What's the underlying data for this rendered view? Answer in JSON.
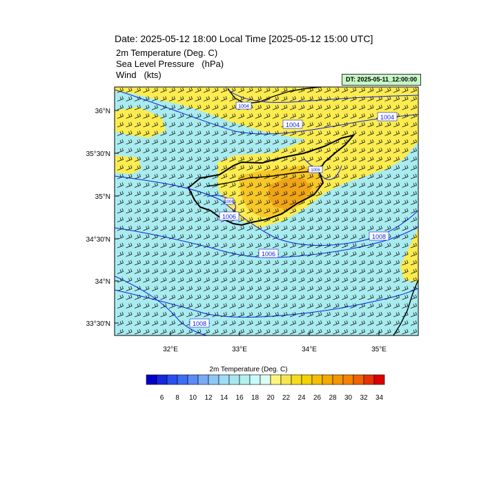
{
  "header": {
    "title": "Date: 2025-05-12  18:00 Local Time [2025-05-12  15:00 UTC]",
    "line1": "2m Temperature (Deg. C)",
    "line2": "Sea Level Pressure   (hPa)",
    "line3": "Wind   (kts)",
    "dt_label": "DT: 2025-05-11_12:00:00"
  },
  "axes": {
    "lat_ticks": [
      "36°N",
      "35°30'N",
      "35°N",
      "34°30'N",
      "34°N",
      "33°30'N"
    ],
    "lon_ticks": [
      "32°E",
      "33°E",
      "34°E",
      "35°E"
    ]
  },
  "isobar_labels": [
    "1004",
    "1004",
    "1004",
    "1006",
    "1006",
    "1006",
    "1006",
    "1008",
    "1008"
  ],
  "colorbar": {
    "title": "2m Temperature (Deg. C)",
    "tick_labels": [
      "6",
      "8",
      "10",
      "12",
      "14",
      "16",
      "18",
      "20",
      "22",
      "24",
      "26",
      "28",
      "30",
      "32",
      "34"
    ],
    "colors": [
      "#0000c8",
      "#1428dc",
      "#2850f0",
      "#3c6ef5",
      "#5a8cf5",
      "#78aaf5",
      "#8cc8f5",
      "#a0dcf5",
      "#aae6f0",
      "#b4f0f0",
      "#c8fafa",
      "#dcfcf5",
      "#fcf57a",
      "#f5e650",
      "#f5dc1e",
      "#f5d200",
      "#f5be00",
      "#f5aa00",
      "#f59600",
      "#f58200",
      "#f06400",
      "#e63200",
      "#dc0000"
    ],
    "colors_hex_note": ""
  },
  "colors": {
    "cool": "#a8ecf0",
    "warm": "#fcec50",
    "hot": "#f8c828",
    "hotter": "#f0a418",
    "isobar": "#0a1ee6",
    "coast": "#000000"
  }
}
